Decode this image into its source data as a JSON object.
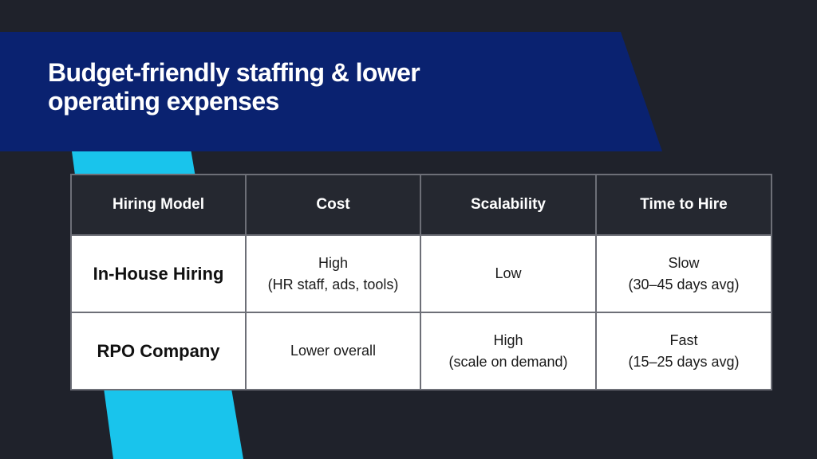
{
  "slide": {
    "title_lines": [
      "Budget-friendly staffing & lower",
      "operating expenses"
    ],
    "colors": {
      "background": "#1f222b",
      "title_band": "#0a2270",
      "accent_stripe": "#19c4ec",
      "header_cell": "#252830",
      "body_cell": "#ffffff",
      "grid_line": "#6d6f77"
    }
  },
  "table": {
    "headers": [
      "Hiring Model",
      "Cost",
      "Scalability",
      "Time to Hire"
    ],
    "rows": [
      {
        "model": "In-House Hiring",
        "cost": [
          "High",
          "(HR staff, ads, tools)"
        ],
        "scalability": [
          "Low"
        ],
        "time_to_hire": [
          "Slow",
          "(30–45 days avg)"
        ]
      },
      {
        "model": "RPO Company",
        "cost": [
          "Lower overall"
        ],
        "scalability": [
          "High",
          "(scale on demand)"
        ],
        "time_to_hire": [
          "Fast",
          "(15–25 days avg)"
        ]
      }
    ]
  }
}
